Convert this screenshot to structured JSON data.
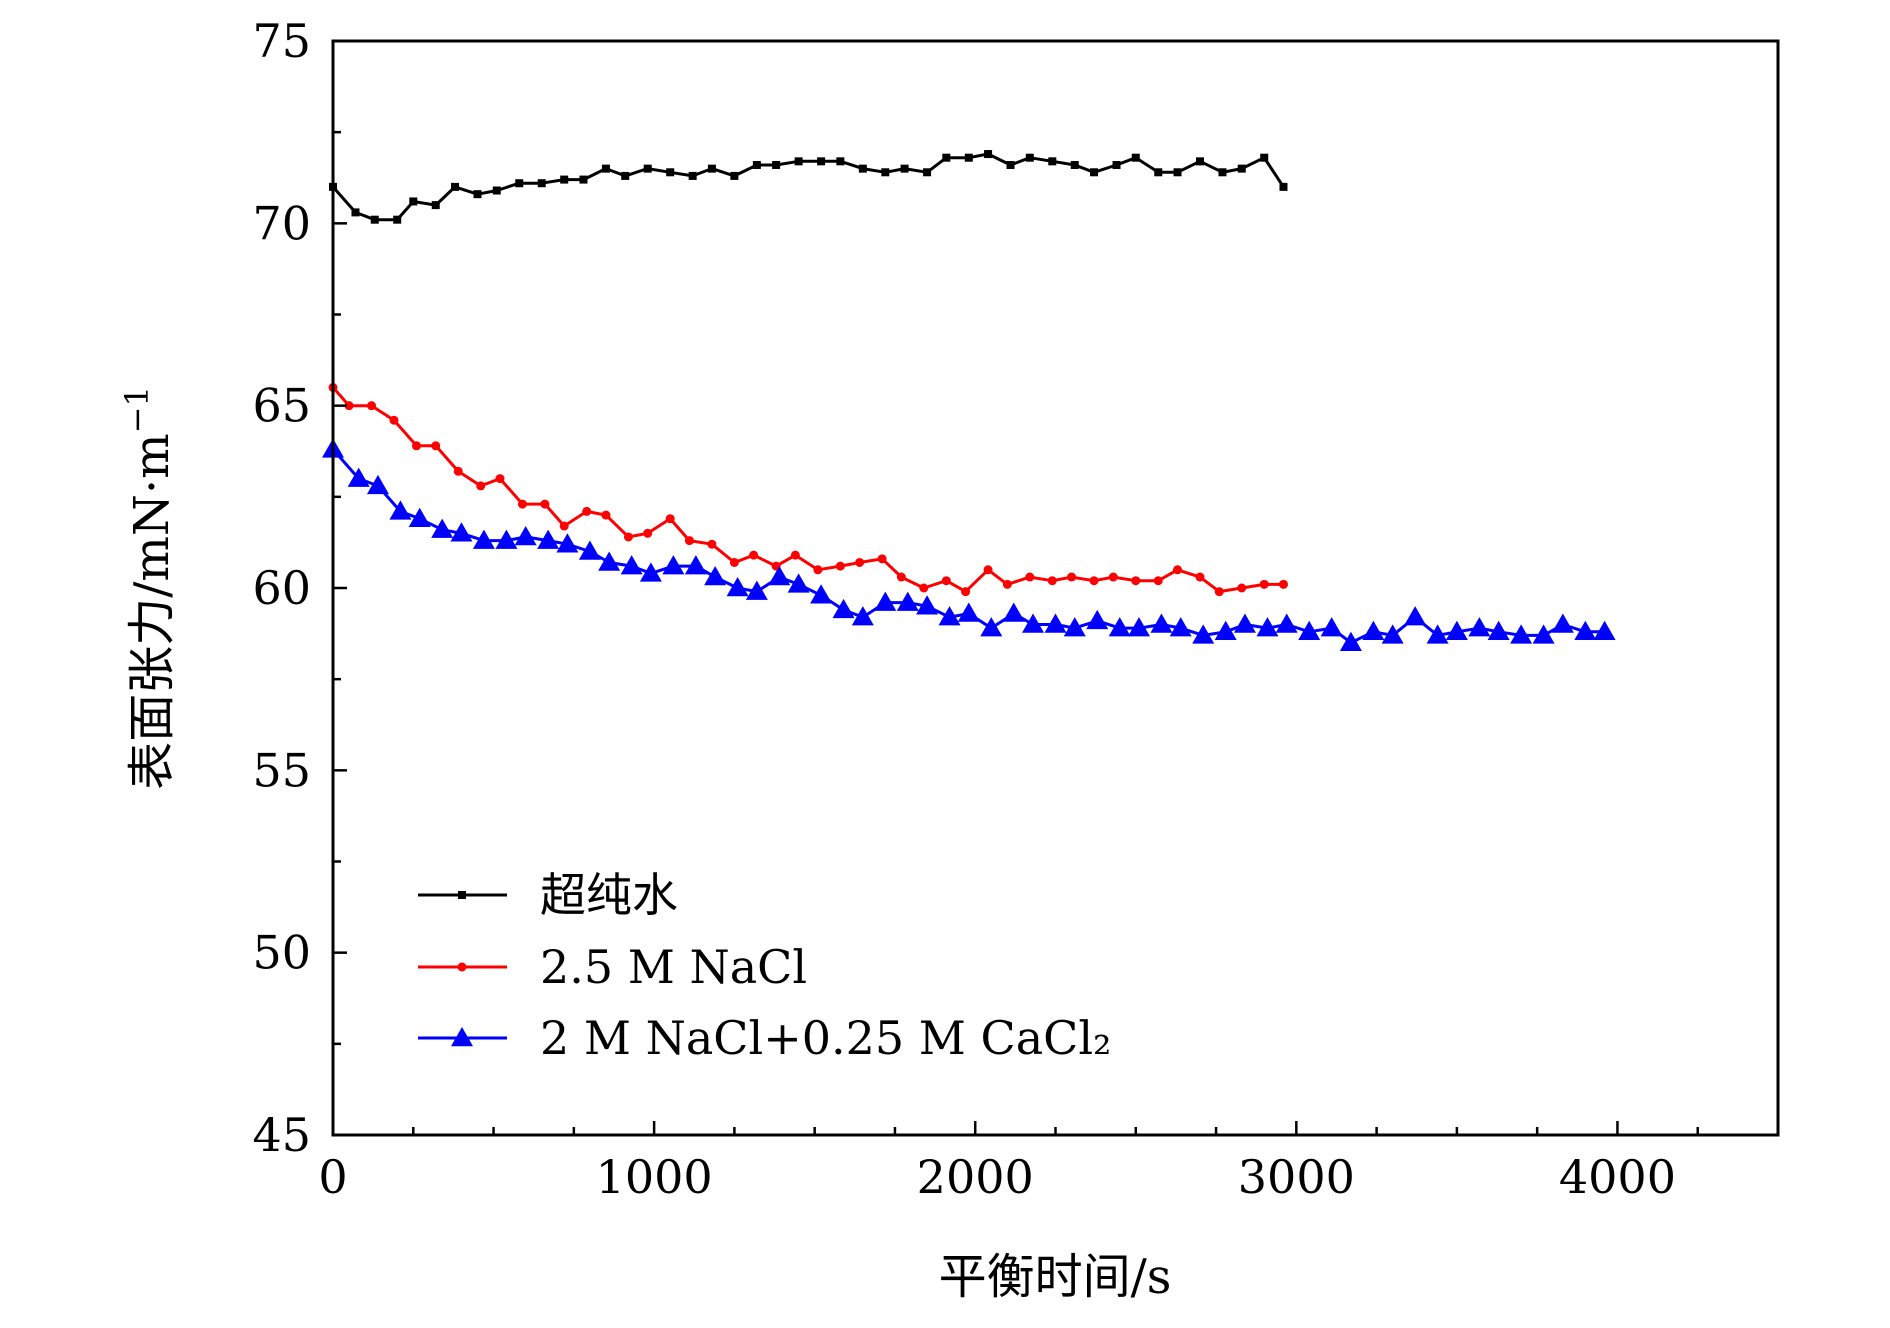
{
  "chart_data": {
    "type": "line",
    "xlabel": "平衡时间/s",
    "ylabel": "表面张力/mN·m",
    "ylabel_superscript": "−1",
    "xlim": [
      0,
      4500
    ],
    "ylim": [
      45,
      75
    ],
    "x_ticks": [
      0,
      1000,
      2000,
      3000,
      4000
    ],
    "x_tick_labels": [
      "0",
      "1000",
      "2000",
      "3000",
      "4000"
    ],
    "y_ticks": [
      45,
      50,
      55,
      60,
      65,
      70,
      75
    ],
    "y_tick_labels": [
      "45",
      "50",
      "55",
      "60",
      "65",
      "70",
      "75"
    ],
    "grid": false,
    "legend_position": "lower-left",
    "series": [
      {
        "name": "超纯水",
        "color": "#000000",
        "marker": "square",
        "x": [
          0,
          70,
          130,
          200,
          250,
          320,
          380,
          450,
          510,
          580,
          650,
          720,
          780,
          850,
          910,
          980,
          1050,
          1120,
          1180,
          1250,
          1320,
          1380,
          1450,
          1520,
          1580,
          1650,
          1720,
          1780,
          1850,
          1910,
          1980,
          2040,
          2110,
          2170,
          2240,
          2310,
          2370,
          2440,
          2500,
          2570,
          2630,
          2700,
          2770,
          2830,
          2900,
          2960
        ],
        "y": [
          71.0,
          70.3,
          70.1,
          70.1,
          70.6,
          70.5,
          71.0,
          70.8,
          70.9,
          71.1,
          71.1,
          71.2,
          71.2,
          71.5,
          71.3,
          71.5,
          71.4,
          71.3,
          71.5,
          71.3,
          71.6,
          71.6,
          71.7,
          71.7,
          71.7,
          71.5,
          71.4,
          71.5,
          71.4,
          71.8,
          71.8,
          71.9,
          71.6,
          71.8,
          71.7,
          71.6,
          71.4,
          71.6,
          71.8,
          71.4,
          71.4,
          71.7,
          71.4,
          71.5,
          71.8,
          71.0
        ]
      },
      {
        "name": "2.5 M NaCl",
        "color": "#ff0000",
        "marker": "circle",
        "x": [
          0,
          50,
          120,
          190,
          260,
          320,
          390,
          460,
          520,
          590,
          660,
          720,
          790,
          850,
          920,
          980,
          1050,
          1110,
          1180,
          1250,
          1310,
          1380,
          1440,
          1510,
          1580,
          1640,
          1710,
          1770,
          1840,
          1910,
          1970,
          2040,
          2100,
          2170,
          2240,
          2300,
          2370,
          2430,
          2500,
          2570,
          2630,
          2700,
          2760,
          2830,
          2900,
          2960
        ],
        "y": [
          65.5,
          65.0,
          65.0,
          64.6,
          63.9,
          63.9,
          63.2,
          62.8,
          63.0,
          62.3,
          62.3,
          61.7,
          62.1,
          62.0,
          61.4,
          61.5,
          61.9,
          61.3,
          61.2,
          60.7,
          60.9,
          60.6,
          60.9,
          60.5,
          60.6,
          60.7,
          60.8,
          60.3,
          60.0,
          60.2,
          59.9,
          60.5,
          60.1,
          60.3,
          60.2,
          60.3,
          60.2,
          60.3,
          60.2,
          60.2,
          60.5,
          60.3,
          59.9,
          60.0,
          60.1,
          60.1
        ]
      },
      {
        "name": "2 M NaCl+0.25 M CaCl₂",
        "color": "#0000ff",
        "marker": "triangle",
        "x": [
          0,
          80,
          140,
          210,
          270,
          340,
          400,
          470,
          540,
          600,
          670,
          730,
          800,
          860,
          930,
          990,
          1060,
          1130,
          1190,
          1260,
          1320,
          1390,
          1450,
          1520,
          1590,
          1650,
          1720,
          1790,
          1850,
          1920,
          1980,
          2050,
          2120,
          2180,
          2250,
          2310,
          2380,
          2450,
          2510,
          2580,
          2640,
          2710,
          2780,
          2840,
          2910,
          2970,
          3040,
          3110,
          3170,
          3240,
          3300,
          3370,
          3440,
          3500,
          3570,
          3630,
          3700,
          3770,
          3830,
          3900,
          3960
        ],
        "y": [
          63.8,
          63.0,
          62.8,
          62.1,
          61.9,
          61.6,
          61.5,
          61.3,
          61.3,
          61.4,
          61.3,
          61.2,
          61.0,
          60.7,
          60.6,
          60.4,
          60.6,
          60.6,
          60.3,
          60.0,
          59.9,
          60.3,
          60.1,
          59.8,
          59.4,
          59.2,
          59.6,
          59.6,
          59.5,
          59.2,
          59.3,
          58.9,
          59.3,
          59.0,
          59.0,
          58.9,
          59.1,
          58.9,
          58.9,
          59.0,
          58.9,
          58.7,
          58.8,
          59.0,
          58.9,
          59.0,
          58.8,
          58.9,
          58.5,
          58.8,
          58.7,
          59.2,
          58.7,
          58.8,
          58.9,
          58.8,
          58.7,
          58.7,
          59.0,
          58.8,
          58.8
        ]
      }
    ]
  }
}
